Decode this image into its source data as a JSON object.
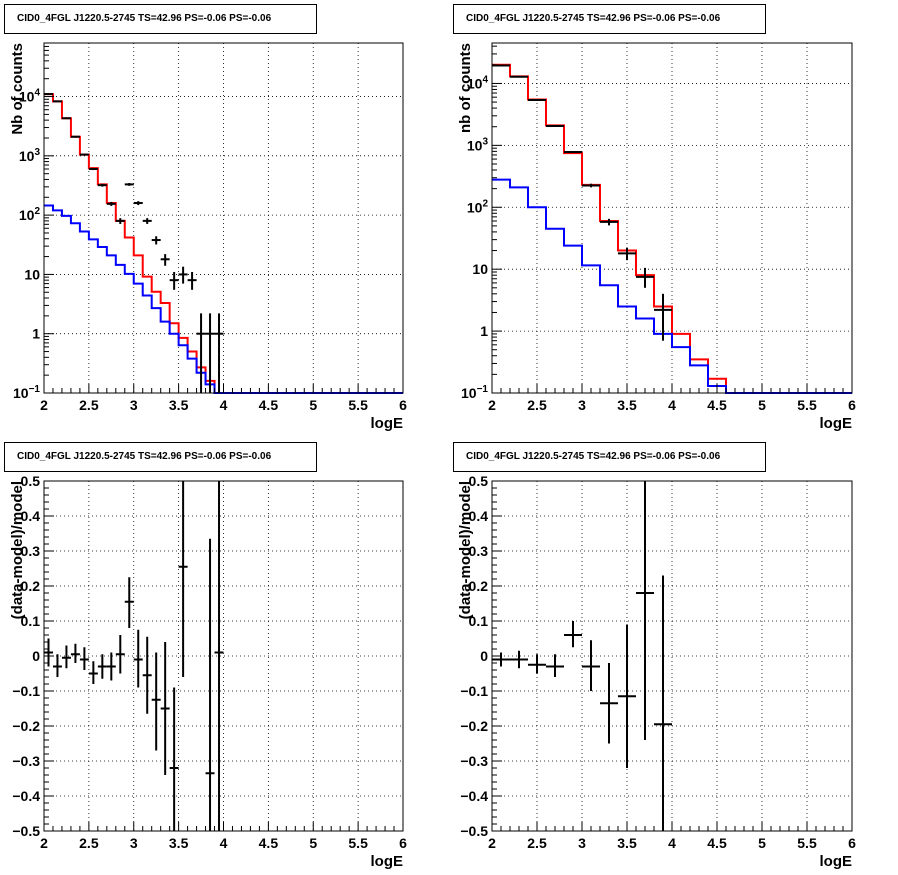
{
  "chart_data": [
    {
      "type": "step",
      "title": "CID0_4FGL J1220.5-2745 TS=42.96 PS=-0.06 PS=-0.06",
      "xlabel": "logE",
      "ylabel": "Nb of counts",
      "xlim": [
        2,
        6
      ],
      "ylim": [
        0.1,
        80000
      ],
      "yscale": "log",
      "grid": true,
      "xticks": [
        2,
        2.5,
        3,
        3.5,
        4,
        4.5,
        5,
        5.5,
        6
      ],
      "yticks": [
        0.1,
        1,
        10,
        100,
        1000,
        10000
      ],
      "ytick_labels": [
        "10^-1",
        "1",
        "10",
        "10^2",
        "10^3",
        "10^4"
      ],
      "bin_edges": [
        2.0,
        2.1,
        2.2,
        2.3,
        2.4,
        2.5,
        2.6,
        2.7,
        2.8,
        2.9,
        3.0,
        3.1,
        3.2,
        3.3,
        3.4,
        3.5,
        3.6,
        3.7,
        3.8,
        3.9,
        4.0,
        4.1,
        4.2,
        4.3,
        4.4,
        4.5,
        4.6,
        4.7,
        4.8,
        4.9,
        5.0,
        5.1,
        5.2,
        5.3,
        5.4,
        5.5,
        5.6,
        5.7,
        5.8,
        5.9,
        6.0
      ],
      "series": [
        {
          "color": "#ff0000",
          "values": [
            11000,
            8300,
            4300,
            2100,
            1050,
            620,
            330,
            160,
            80,
            42,
            21,
            9.2,
            5.1,
            3.3,
            1.5,
            0.85,
            0.5,
            0.27,
            0.16,
            0.1,
            0.1,
            0.1,
            0.1,
            0.1,
            0.1,
            0.1,
            0.1,
            0.1,
            0.1,
            0.1,
            0.1,
            0.1,
            0.1,
            0.1,
            0.1,
            0.1,
            0.1,
            0.1,
            0.1,
            0.1
          ]
        },
        {
          "color": "#0000ff",
          "values": [
            145,
            120,
            97,
            73,
            53,
            39,
            29,
            21,
            14.5,
            10.2,
            7.0,
            4.4,
            2.7,
            1.6,
            1.0,
            0.64,
            0.38,
            0.22,
            0.14,
            0.1,
            0.1,
            0.1,
            0.1,
            0.1,
            0.1,
            0.1,
            0.1,
            0.1,
            0.1,
            0.1,
            0.1,
            0.1,
            0.1,
            0.1,
            0.1,
            0.1,
            0.1,
            0.1,
            0.1,
            0.1
          ]
        }
      ],
      "points": [
        {
          "x": 2.05,
          "y": 11000,
          "xerr": 0.05,
          "ylo": 10850,
          "yhi": 11150
        },
        {
          "x": 2.15,
          "y": 8300,
          "xerr": 0.05,
          "ylo": 8150,
          "yhi": 8450
        },
        {
          "x": 2.25,
          "y": 4300,
          "xerr": 0.05,
          "ylo": 4200,
          "yhi": 4400
        },
        {
          "x": 2.35,
          "y": 2100,
          "xerr": 0.05,
          "ylo": 2050,
          "yhi": 2150
        },
        {
          "x": 2.45,
          "y": 1050,
          "xerr": 0.05,
          "ylo": 1020,
          "yhi": 1080
        },
        {
          "x": 2.55,
          "y": 600,
          "xerr": 0.05,
          "ylo": 575,
          "yhi": 625
        },
        {
          "x": 2.65,
          "y": 320,
          "xerr": 0.05,
          "ylo": 302,
          "yhi": 338
        },
        {
          "x": 2.75,
          "y": 155,
          "xerr": 0.05,
          "ylo": 143,
          "yhi": 167
        },
        {
          "x": 2.85,
          "y": 80,
          "xerr": 0.05,
          "ylo": 71,
          "yhi": 89
        },
        {
          "x": 2.95,
          "y": 330,
          "xerr": 0.05,
          "ylo": 312,
          "yhi": 348
        },
        {
          "x": 3.05,
          "y": 160,
          "xerr": 0.05,
          "ylo": 148,
          "yhi": 172
        },
        {
          "x": 3.15,
          "y": 80,
          "xerr": 0.05,
          "ylo": 71,
          "yhi": 89
        },
        {
          "x": 3.25,
          "y": 38,
          "xerr": 0.05,
          "ylo": 32,
          "yhi": 44
        },
        {
          "x": 3.35,
          "y": 18,
          "xerr": 0.05,
          "ylo": 14,
          "yhi": 22
        },
        {
          "x": 3.45,
          "y": 8,
          "xerr": 0.05,
          "ylo": 5.5,
          "yhi": 11
        },
        {
          "x": 3.55,
          "y": 10,
          "xerr": 0.05,
          "ylo": 7,
          "yhi": 13.5
        },
        {
          "x": 3.65,
          "y": 8,
          "xerr": 0.05,
          "ylo": 5.5,
          "yhi": 11
        },
        {
          "x": 3.75,
          "y": 1,
          "xerr": 0.05,
          "ylo": 0.1,
          "yhi": 2.2
        },
        {
          "x": 3.85,
          "y": 1,
          "xerr": 0.05,
          "ylo": 0.1,
          "yhi": 2.2
        },
        {
          "x": 3.95,
          "y": 1,
          "xerr": 0.05,
          "ylo": 0.1,
          "yhi": 2.2
        }
      ]
    },
    {
      "type": "step",
      "title": "CID0_4FGL J1220.5-2745 TS=42.96 PS=-0.06 PS=-0.06",
      "xlabel": "logE",
      "ylabel": "nb of counts",
      "xlim": [
        2,
        6
      ],
      "ylim": [
        0.1,
        45000
      ],
      "yscale": "log",
      "grid": true,
      "xticks": [
        2,
        2.5,
        3,
        3.5,
        4,
        4.5,
        5,
        5.5,
        6
      ],
      "yticks": [
        0.1,
        1,
        10,
        100,
        1000,
        10000
      ],
      "ytick_labels": [
        "10^-1",
        "1",
        "10",
        "10^2",
        "10^3",
        "10^4"
      ],
      "bin_edges": [
        2.0,
        2.2,
        2.4,
        2.6,
        2.8,
        3.0,
        3.2,
        3.4,
        3.6,
        3.8,
        4.0,
        4.2,
        4.4,
        4.6,
        4.8,
        5.0,
        5.2,
        5.4,
        5.6,
        5.8,
        6.0
      ],
      "series": [
        {
          "color": "#ff0000",
          "values": [
            20000,
            13000,
            5500,
            2100,
            750,
            230,
            60,
            20,
            8,
            2.5,
            0.9,
            0.35,
            0.17,
            0.1,
            0.1,
            0.1,
            0.1,
            0.1,
            0.1,
            0.1
          ]
        },
        {
          "color": "#0000ff",
          "values": [
            280,
            210,
            100,
            45,
            24,
            11.5,
            5.5,
            2.5,
            1.6,
            0.9,
            0.55,
            0.28,
            0.13,
            0.1,
            0.1,
            0.1,
            0.1,
            0.1,
            0.1,
            0.1
          ]
        }
      ],
      "points": [
        {
          "x": 2.1,
          "y": 19500,
          "xerr": 0.1,
          "ylo": 19300,
          "yhi": 19700
        },
        {
          "x": 2.3,
          "y": 12800,
          "xerr": 0.1,
          "ylo": 12650,
          "yhi": 12950
        },
        {
          "x": 2.5,
          "y": 5400,
          "xerr": 0.1,
          "ylo": 5300,
          "yhi": 5500
        },
        {
          "x": 2.7,
          "y": 2050,
          "xerr": 0.1,
          "ylo": 2000,
          "yhi": 2100
        },
        {
          "x": 2.9,
          "y": 780,
          "xerr": 0.1,
          "ylo": 752,
          "yhi": 808
        },
        {
          "x": 3.1,
          "y": 225,
          "xerr": 0.1,
          "ylo": 210,
          "yhi": 240
        },
        {
          "x": 3.3,
          "y": 58,
          "xerr": 0.1,
          "ylo": 51,
          "yhi": 65
        },
        {
          "x": 3.5,
          "y": 18,
          "xerr": 0.1,
          "ylo": 14,
          "yhi": 22
        },
        {
          "x": 3.7,
          "y": 7.5,
          "xerr": 0.1,
          "ylo": 5,
          "yhi": 10.5
        },
        {
          "x": 3.9,
          "y": 2.2,
          "xerr": 0.1,
          "ylo": 0.7,
          "yhi": 4
        }
      ]
    },
    {
      "type": "scatter",
      "title": "CID0_4FGL J1220.5-2745 TS=42.96 PS=-0.06 PS=-0.06",
      "xlabel": "logE",
      "ylabel": "(data-model)/model",
      "xlim": [
        2,
        6
      ],
      "ylim": [
        -0.5,
        0.5
      ],
      "grid": true,
      "xticks": [
        2,
        2.5,
        3,
        3.5,
        4,
        4.5,
        5,
        5.5,
        6
      ],
      "yticks": [
        -0.5,
        -0.4,
        -0.3,
        -0.2,
        -0.1,
        0,
        0.1,
        0.2,
        0.3,
        0.4,
        0.5
      ],
      "points": [
        {
          "x": 2.05,
          "y": 0.01,
          "xerr": 0.05,
          "ylo": -0.03,
          "yhi": 0.05
        },
        {
          "x": 2.15,
          "y": -0.03,
          "xerr": 0.05,
          "ylo": -0.06,
          "yhi": 0.005
        },
        {
          "x": 2.25,
          "y": -0.005,
          "xerr": 0.05,
          "ylo": -0.035,
          "yhi": 0.03
        },
        {
          "x": 2.35,
          "y": 0.005,
          "xerr": 0.05,
          "ylo": -0.02,
          "yhi": 0.035
        },
        {
          "x": 2.45,
          "y": -0.01,
          "xerr": 0.05,
          "ylo": -0.04,
          "yhi": 0.025
        },
        {
          "x": 2.55,
          "y": -0.05,
          "xerr": 0.05,
          "ylo": -0.08,
          "yhi": -0.015
        },
        {
          "x": 2.65,
          "y": -0.03,
          "xerr": 0.05,
          "ylo": -0.065,
          "yhi": 0.005
        },
        {
          "x": 2.75,
          "y": -0.03,
          "xerr": 0.05,
          "ylo": -0.07,
          "yhi": 0.01
        },
        {
          "x": 2.85,
          "y": 0.005,
          "xerr": 0.05,
          "ylo": -0.05,
          "yhi": 0.06
        },
        {
          "x": 2.95,
          "y": 0.155,
          "xerr": 0.05,
          "ylo": 0.08,
          "yhi": 0.225
        },
        {
          "x": 3.05,
          "y": -0.01,
          "xerr": 0.05,
          "ylo": -0.09,
          "yhi": 0.075
        },
        {
          "x": 3.15,
          "y": -0.055,
          "xerr": 0.05,
          "ylo": -0.165,
          "yhi": 0.055
        },
        {
          "x": 3.25,
          "y": -0.125,
          "xerr": 0.05,
          "ylo": -0.27,
          "yhi": 0.01
        },
        {
          "x": 3.35,
          "y": -0.15,
          "xerr": 0.05,
          "ylo": -0.34,
          "yhi": 0.04
        },
        {
          "x": 3.45,
          "y": -0.32,
          "xerr": 0.05,
          "ylo": -0.5,
          "yhi": -0.09
        },
        {
          "x": 3.55,
          "y": 0.255,
          "xerr": 0.05,
          "ylo": -0.06,
          "yhi": 0.5
        },
        {
          "x": 3.85,
          "y": -0.335,
          "xerr": 0.05,
          "ylo": -0.5,
          "yhi": 0.335
        },
        {
          "x": 3.95,
          "y": 0.01,
          "xerr": 0.05,
          "ylo": -0.5,
          "yhi": 0.5
        }
      ]
    },
    {
      "type": "scatter",
      "title": "CID0_4FGL J1220.5-2745 TS=42.96 PS=-0.06 PS=-0.06",
      "xlabel": "logE",
      "ylabel": "(data-model)/model",
      "xlim": [
        2,
        6
      ],
      "ylim": [
        -0.5,
        0.5
      ],
      "grid": true,
      "xticks": [
        2,
        2.5,
        3,
        3.5,
        4,
        4.5,
        5,
        5.5,
        6
      ],
      "yticks": [
        -0.5,
        -0.4,
        -0.3,
        -0.2,
        -0.1,
        0,
        0.1,
        0.2,
        0.3,
        0.4,
        0.5
      ],
      "points": [
        {
          "x": 2.1,
          "y": -0.01,
          "xerr": 0.1,
          "ylo": -0.03,
          "yhi": 0.01
        },
        {
          "x": 2.3,
          "y": -0.01,
          "xerr": 0.1,
          "ylo": -0.035,
          "yhi": 0.015
        },
        {
          "x": 2.5,
          "y": -0.025,
          "xerr": 0.1,
          "ylo": -0.05,
          "yhi": 0.005
        },
        {
          "x": 2.7,
          "y": -0.03,
          "xerr": 0.1,
          "ylo": -0.06,
          "yhi": 0.005
        },
        {
          "x": 2.9,
          "y": 0.06,
          "xerr": 0.1,
          "ylo": 0.025,
          "yhi": 0.1
        },
        {
          "x": 3.1,
          "y": -0.03,
          "xerr": 0.1,
          "ylo": -0.1,
          "yhi": 0.045
        },
        {
          "x": 3.3,
          "y": -0.135,
          "xerr": 0.1,
          "ylo": -0.25,
          "yhi": -0.02
        },
        {
          "x": 3.5,
          "y": -0.115,
          "xerr": 0.1,
          "ylo": -0.32,
          "yhi": 0.09
        },
        {
          "x": 3.7,
          "y": 0.18,
          "xerr": 0.1,
          "ylo": -0.24,
          "yhi": 0.5
        },
        {
          "x": 3.9,
          "y": -0.195,
          "xerr": 0.1,
          "ylo": -0.5,
          "yhi": 0.23
        }
      ]
    }
  ]
}
